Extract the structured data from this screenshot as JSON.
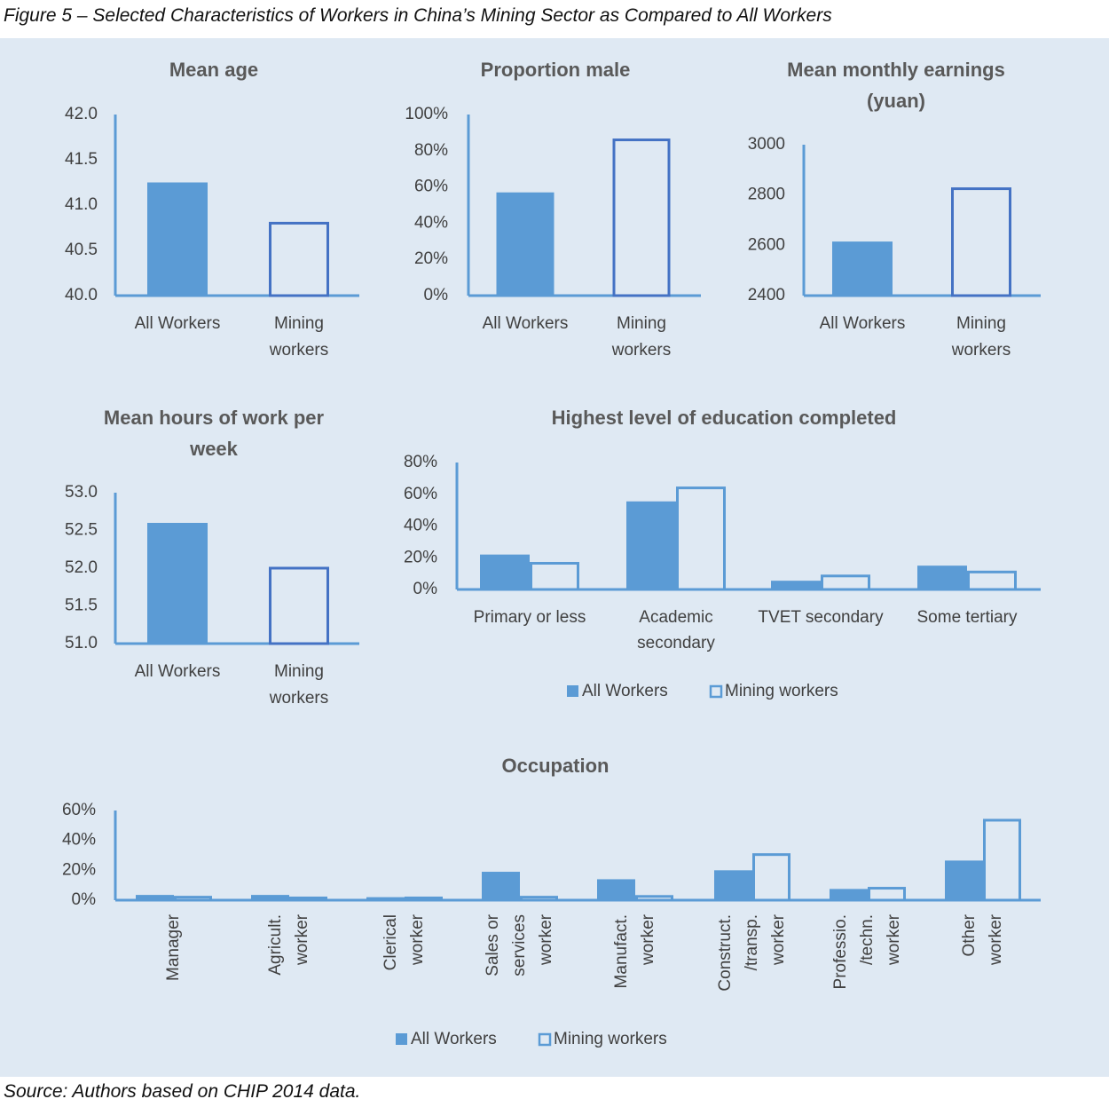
{
  "figure_title": "Figure 5 – Selected Characteristics of Workers in China’s Mining Sector as Compared to All Workers",
  "source": "Source: Authors based on CHIP 2014 data.",
  "colors": {
    "all_workers": "#5b9bd5",
    "mining_outline": "#4472c4",
    "axis": "#5b9bd5",
    "background": "#dfe9f3"
  },
  "chart_data": [
    {
      "id": "mean_age",
      "type": "bar",
      "title": [
        "Mean age"
      ],
      "categories": [
        [
          "All Workers"
        ],
        [
          "Mining",
          "workers"
        ]
      ],
      "series": [
        {
          "name": "",
          "values": [
            41.25,
            40.8
          ]
        }
      ],
      "ylim": [
        40.0,
        42.0
      ],
      "yticks": [
        "40.0",
        "40.5",
        "41.0",
        "41.5",
        "42.0"
      ]
    },
    {
      "id": "proportion_male",
      "type": "bar",
      "title": [
        "Proportion male"
      ],
      "categories": [
        [
          "All Workers"
        ],
        [
          "Mining",
          "workers"
        ]
      ],
      "series": [
        {
          "name": "",
          "values": [
            0.57,
            0.86
          ]
        }
      ],
      "ylim": [
        0,
        1.0
      ],
      "yticks": [
        "0%",
        "20%",
        "40%",
        "60%",
        "80%",
        "100%"
      ]
    },
    {
      "id": "earnings",
      "type": "bar",
      "title": [
        "Mean monthly earnings",
        "(yuan)"
      ],
      "categories": [
        [
          "All Workers"
        ],
        [
          "Mining",
          "workers"
        ]
      ],
      "series": [
        {
          "name": "",
          "values": [
            2615,
            2825
          ]
        }
      ],
      "ylim": [
        2400,
        3000
      ],
      "yticks": [
        "2400",
        "2600",
        "2800",
        "3000"
      ]
    },
    {
      "id": "hours",
      "type": "bar",
      "title": [
        "Mean hours of work per",
        "week"
      ],
      "categories": [
        [
          "All Workers"
        ],
        [
          "Mining",
          "workers"
        ]
      ],
      "series": [
        {
          "name": "",
          "values": [
            52.6,
            52.0
          ]
        }
      ],
      "ylim": [
        51.0,
        53.0
      ],
      "yticks": [
        "51.0",
        "51.5",
        "52.0",
        "52.5",
        "53.0"
      ]
    },
    {
      "id": "education",
      "type": "bar",
      "title": [
        "Highest level of education completed"
      ],
      "categories": [
        [
          "Primary or less"
        ],
        [
          "Academic",
          "secondary"
        ],
        [
          "TVET secondary"
        ],
        [
          "Some tertiary"
        ]
      ],
      "series": [
        {
          "name": "All Workers",
          "values": [
            0.22,
            0.555,
            0.055,
            0.15
          ]
        },
        {
          "name": "Mining workers",
          "values": [
            0.165,
            0.64,
            0.085,
            0.11
          ]
        }
      ],
      "ylim": [
        0,
        0.8
      ],
      "yticks": [
        "0%",
        "20%",
        "40%",
        "60%",
        "80%"
      ],
      "legend": [
        "All Workers",
        "Mining workers"
      ]
    },
    {
      "id": "occupation",
      "type": "bar",
      "title": [
        "Occupation"
      ],
      "categories": [
        [
          "Manager"
        ],
        [
          "Agricult.",
          "worker"
        ],
        [
          "Clerical",
          "worker"
        ],
        [
          "Sales or",
          "services",
          "worker"
        ],
        [
          "Manufact.",
          "worker"
        ],
        [
          "Construct.",
          "/transp.",
          "worker"
        ],
        [
          "Professio.",
          "/techn.",
          "worker"
        ],
        [
          "Other",
          "worker"
        ]
      ],
      "series": [
        {
          "name": "All Workers",
          "values": [
            0.035,
            0.035,
            0.02,
            0.19,
            0.14,
            0.2,
            0.075,
            0.265
          ]
        },
        {
          "name": "Mining workers",
          "values": [
            0.02,
            0.015,
            0.015,
            0.02,
            0.025,
            0.305,
            0.08,
            0.535
          ]
        }
      ],
      "ylim": [
        0,
        0.6
      ],
      "yticks": [
        "0%",
        "20%",
        "40%",
        "60%"
      ],
      "legend": [
        "All Workers",
        "Mining workers"
      ]
    }
  ]
}
